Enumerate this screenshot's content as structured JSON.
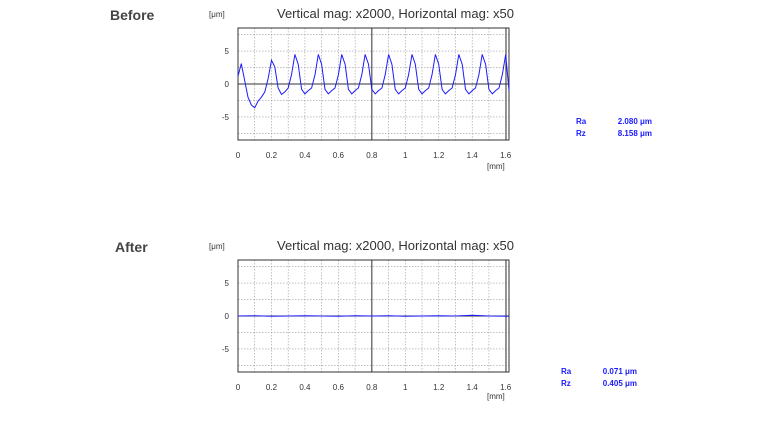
{
  "chart_data": [
    {
      "type": "line",
      "panel_label": "Before",
      "title": "Vertical mag: x2000, Horizontal mag: x50",
      "ylabel": "[μm]",
      "xlabel": "[mm]",
      "xlim": [
        0,
        1.62
      ],
      "ylim": [
        -8.5,
        8.5
      ],
      "x_ticks": [
        "0",
        "0.2",
        "0.4",
        "0.6",
        "0.8",
        "1",
        "1.2",
        "1.4",
        "1.6"
      ],
      "y_ticks": [
        "5",
        "0",
        "-5"
      ],
      "grid": true,
      "line_color": "#1a1aff",
      "series": [
        {
          "x": [
            0.0,
            0.02,
            0.04,
            0.06,
            0.08,
            0.1,
            0.12,
            0.14,
            0.16,
            0.18,
            0.2,
            0.22,
            0.24,
            0.26,
            0.28,
            0.3,
            0.32,
            0.34,
            0.36,
            0.38,
            0.4,
            0.42,
            0.44,
            0.46,
            0.48,
            0.5,
            0.52,
            0.54,
            0.56,
            0.58,
            0.6,
            0.62,
            0.64,
            0.66,
            0.68,
            0.7,
            0.72,
            0.74,
            0.76,
            0.78,
            0.8,
            0.82,
            0.84,
            0.86,
            0.88,
            0.9,
            0.92,
            0.94,
            0.96,
            0.98,
            1.0,
            1.02,
            1.04,
            1.06,
            1.08,
            1.1,
            1.12,
            1.14,
            1.16,
            1.18,
            1.2,
            1.22,
            1.24,
            1.26,
            1.28,
            1.3,
            1.32,
            1.34,
            1.36,
            1.38,
            1.4,
            1.42,
            1.44,
            1.46,
            1.48,
            1.5,
            1.52,
            1.54,
            1.56,
            1.58,
            1.6,
            1.62
          ],
          "y": [
            1.2,
            3.1,
            0.5,
            -2.0,
            -3.2,
            -3.6,
            -2.6,
            -2.0,
            -1.2,
            0.8,
            3.6,
            2.6,
            -0.6,
            -1.6,
            -1.2,
            -0.6,
            1.4,
            4.5,
            3.0,
            -0.8,
            -1.5,
            -1.0,
            -0.6,
            1.4,
            4.5,
            3.0,
            -0.8,
            -1.5,
            -1.0,
            -0.6,
            1.4,
            4.5,
            3.0,
            -0.8,
            -1.5,
            -1.0,
            -0.6,
            1.4,
            4.5,
            3.0,
            -0.8,
            -1.5,
            -1.0,
            -0.6,
            1.4,
            4.5,
            3.0,
            -0.8,
            -1.5,
            -1.0,
            -0.6,
            1.4,
            4.5,
            3.0,
            -0.8,
            -1.5,
            -1.0,
            -0.6,
            1.4,
            4.5,
            3.0,
            -0.8,
            -1.5,
            -1.0,
            -0.6,
            1.4,
            4.5,
            3.0,
            -0.8,
            -1.5,
            -1.0,
            -0.6,
            1.4,
            4.5,
            3.0,
            -0.8,
            -1.5,
            -1.0,
            -0.6,
            1.4,
            4.5,
            -1.0
          ]
        }
      ],
      "stats": [
        {
          "name": "Ra",
          "value": "2.080 μm"
        },
        {
          "name": "Rz",
          "value": "8.158 μm"
        }
      ]
    },
    {
      "type": "line",
      "panel_label": "After",
      "title": "Vertical mag: x2000, Horizontal mag: x50",
      "ylabel": "[μm]",
      "xlabel": "[mm]",
      "xlim": [
        0,
        1.62
      ],
      "ylim": [
        -8.5,
        8.5
      ],
      "x_ticks": [
        "0",
        "0.2",
        "0.4",
        "0.6",
        "0.8",
        "1",
        "1.2",
        "1.4",
        "1.6"
      ],
      "y_ticks": [
        "5",
        "0",
        "-5"
      ],
      "grid": true,
      "line_color": "#1a1aff",
      "series": [
        {
          "x": [
            0.0,
            0.1,
            0.2,
            0.3,
            0.4,
            0.5,
            0.6,
            0.7,
            0.8,
            0.9,
            1.0,
            1.1,
            1.2,
            1.3,
            1.4,
            1.5,
            1.62
          ],
          "y": [
            0.0,
            0.05,
            -0.05,
            0.0,
            0.05,
            0.0,
            -0.05,
            0.05,
            0.0,
            0.05,
            -0.05,
            0.0,
            0.05,
            0.0,
            0.1,
            0.0,
            -0.05
          ]
        }
      ],
      "stats": [
        {
          "name": "Ra",
          "value": "0.071 μm"
        },
        {
          "name": "Rz",
          "value": "0.405 μm"
        }
      ]
    }
  ]
}
